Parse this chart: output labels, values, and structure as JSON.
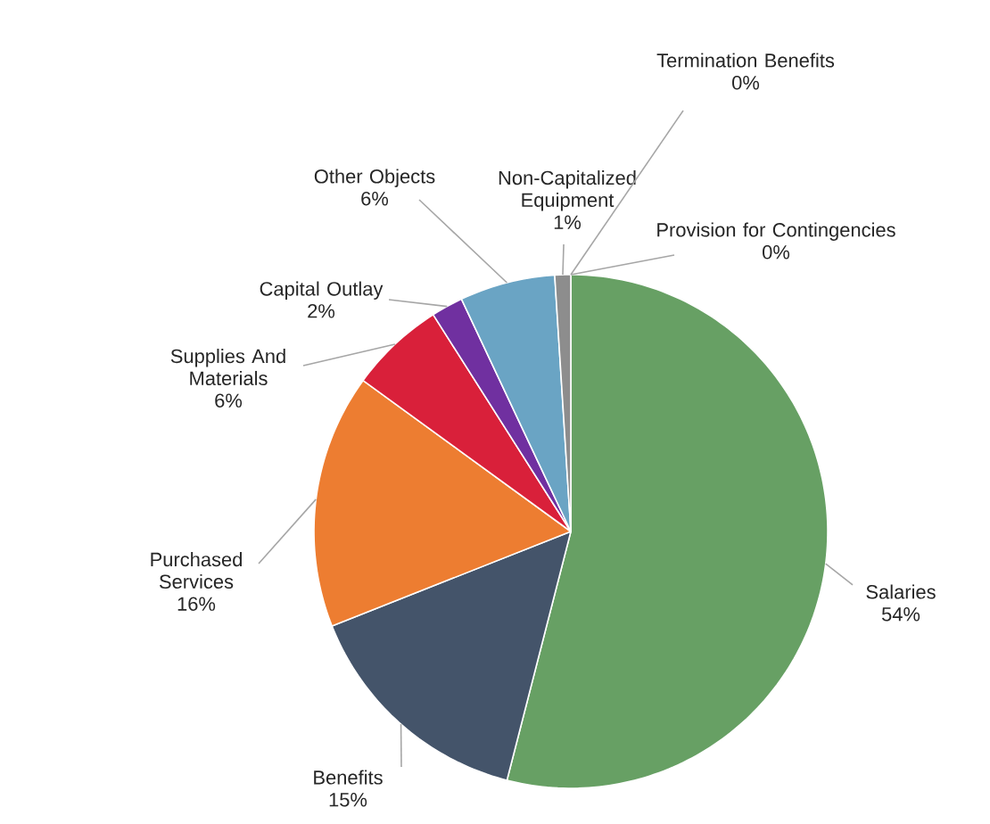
{
  "chart_data": {
    "type": "pie",
    "categories": [
      "Salaries",
      "Benefits",
      "Purchased Services",
      "Supplies And Materials",
      "Capital Outlay",
      "Other Objects",
      "Non-Capitalized Equipment",
      "Termination Benefits",
      "Provision for Contingencies"
    ],
    "values": [
      54,
      15,
      16,
      6,
      2,
      6,
      1,
      0,
      0
    ],
    "value_labels": [
      "54%",
      "15%",
      "16%",
      "6%",
      "2%",
      "6%",
      "1%",
      "0%",
      "0%"
    ],
    "colors": [
      "#67a064",
      "#44546a",
      "#ed7d31",
      "#d9203a",
      "#7030a0",
      "#6aa4c4",
      "#8d8d8d",
      "#5b9bd5",
      "#ffc000"
    ]
  }
}
